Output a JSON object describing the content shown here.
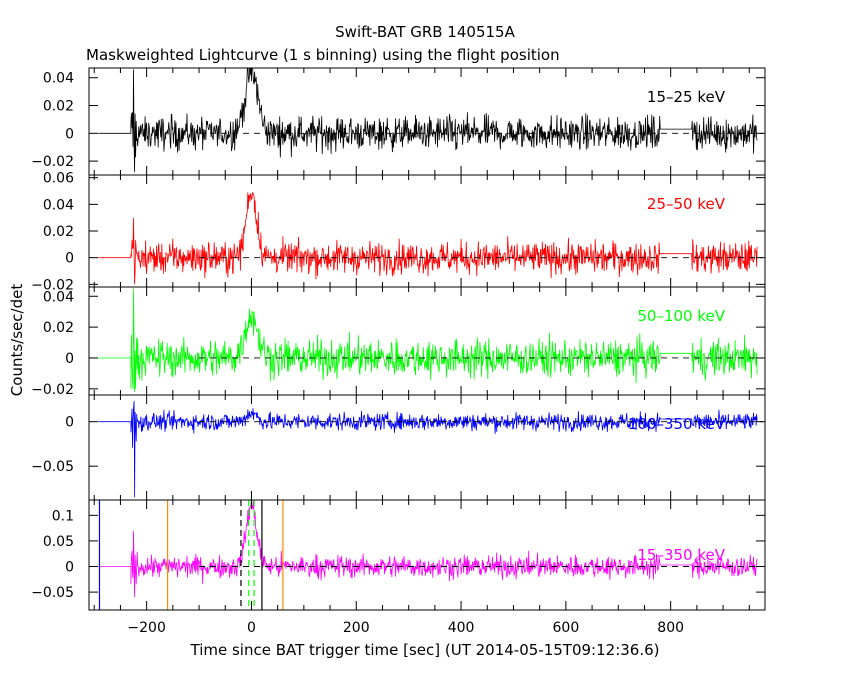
{
  "figure": {
    "title": "Swift-BAT GRB 140515A",
    "subtitle": "Maskweighted Lightcurve (1 s binning) using the flight position",
    "ylabel": "Counts/sec/det",
    "xlabel": "Time since BAT trigger time [sec] (UT 2014-05-15T09:12:36.6)",
    "x_ticks": [
      "−200",
      "0",
      "200",
      "400",
      "600",
      "800"
    ]
  },
  "chart_data": {
    "type": "line",
    "x_unit": "sec",
    "xlim": [
      -310,
      980
    ],
    "data_span": [
      -230,
      965
    ],
    "gap": [
      780,
      840
    ],
    "panels": [
      {
        "band": "15–25 keV",
        "color": "#000000",
        "ylim": [
          -0.03,
          0.047
        ],
        "y_ticks": [
          0.04,
          0.02,
          0,
          -0.02
        ],
        "y_tick_labels": [
          "0.04",
          "0.02",
          "0",
          "−0.02"
        ],
        "noise_sigma": 0.006,
        "spike": {
          "x": -225,
          "max": 0.046,
          "min": -0.028
        },
        "peak": {
          "x": 0,
          "height": 0.045,
          "width": 12
        }
      },
      {
        "band": "25–50 keV",
        "color": "#ff0000",
        "ylim": [
          -0.022,
          0.062
        ],
        "y_ticks": [
          0.06,
          0.04,
          0.02,
          0,
          -0.02
        ],
        "y_tick_labels": [
          "0.06",
          "0.04",
          "0.02",
          "0",
          "−0.02"
        ],
        "noise_sigma": 0.006,
        "spike": {
          "x": -225,
          "max": 0.03,
          "min": -0.02
        },
        "peak": {
          "x": 0,
          "height": 0.05,
          "width": 10
        }
      },
      {
        "band": "50–100 keV",
        "color": "#00ff00",
        "ylim": [
          -0.024,
          0.046
        ],
        "y_ticks": [
          0.04,
          0.02,
          0,
          -0.02
        ],
        "y_tick_labels": [
          "0.04",
          "0.02",
          "0",
          "−0.02"
        ],
        "noise_sigma": 0.006,
        "spike": {
          "x": -225,
          "max": 0.045,
          "min": -0.022
        },
        "peak": {
          "x": 0,
          "height": 0.028,
          "width": 12
        }
      },
      {
        "band": "100–350 keV",
        "color": "#0000ff",
        "ylim": [
          -0.088,
          0.03
        ],
        "y_ticks": [
          0,
          -0.05
        ],
        "y_tick_labels": [
          "0",
          "−0.05"
        ],
        "noise_sigma": 0.005,
        "spike": {
          "x": -225,
          "max": 0.015,
          "min": -0.085
        },
        "peak": {
          "x": 0,
          "height": 0.01,
          "width": 10
        }
      },
      {
        "band": "15–350 keV",
        "color": "#ff00ff",
        "ylim": [
          -0.085,
          0.13
        ],
        "y_ticks": [
          0.1,
          0.05,
          0,
          -0.05
        ],
        "y_tick_labels": [
          "0.1",
          "0.05",
          "0",
          "−0.05"
        ],
        "noise_sigma": 0.011,
        "spike": {
          "x": -225,
          "max": 0.07,
          "min": -0.06
        },
        "peak": {
          "x": 0,
          "height": 0.12,
          "width": 10
        },
        "markers": [
          {
            "x": -290,
            "color": "#0000ff",
            "style": "solid"
          },
          {
            "x": -160,
            "color": "#ff8c00",
            "style": "solid"
          },
          {
            "x": -20,
            "color": "#000000",
            "style": "dashed"
          },
          {
            "x": -5,
            "color": "#00ff00",
            "style": "dashed"
          },
          {
            "x": 5,
            "color": "#00ff00",
            "style": "dashed"
          },
          {
            "x": 20,
            "color": "#000000",
            "style": "solid"
          },
          {
            "x": 60,
            "color": "#ff8c00",
            "style": "solid"
          }
        ]
      }
    ]
  }
}
